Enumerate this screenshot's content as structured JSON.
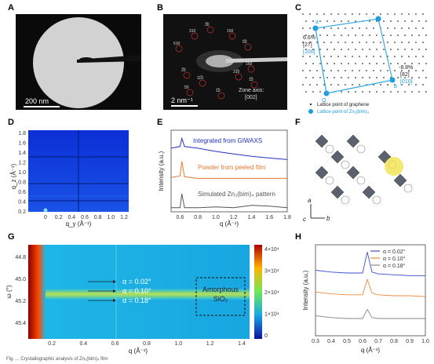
{
  "panels": {
    "A": "A",
    "B": "B",
    "C": "C",
    "D": "D",
    "E": "E",
    "F": "F",
    "G": "G",
    "H": "H"
  },
  "panel_a": {
    "scale_bar": "200 nm"
  },
  "panel_b": {
    "scale_bar": "2 nm⁻¹",
    "zone_axis_line1": "Zone axis:",
    "zone_axis_line2": "[002]",
    "spots": [
      "310",
      "150",
      "510",
      "5̅0",
      "2̅0",
      "11̅0",
      "31̅0",
      "1̅0",
      "3̅0",
      "5́0",
      "1̅0",
      "150"
    ]
  },
  "panel_c": {
    "angle_left": "6.6%",
    "angle_left_idx": "[27]",
    "dir_left": "[100]",
    "angle_right": "-8.8%",
    "angle_right_idx": "[82]",
    "dir_right": "[010]",
    "origin": "O",
    "pt_a": "a",
    "pt_b": "b",
    "legend_graphene": "Lattice point of graphene",
    "legend_zn": "Lattice point of Zn₂(bim)₄"
  },
  "panel_d": {
    "ylabel": "q_z (Å⁻¹)",
    "xlabel": "q_y (Å⁻¹)",
    "yticks": [
      "1.8",
      "1.6",
      "1.4",
      "1.2",
      "1.0",
      "0.8",
      "0.6",
      "0.4",
      "0.2"
    ],
    "xticks": [
      "0",
      "0.2",
      "0.4",
      "0.6",
      "0.8",
      "1.0",
      "1.2"
    ]
  },
  "panel_e": {
    "ylabel": "Intensity (a.u.)",
    "xlabel": "q (Å⁻¹)",
    "series_labels": [
      "Integrated from GIWAXS",
      "Powder from peeled film",
      "Simulated Zn₂(bim)₄ pattern"
    ],
    "xticks": [
      "0.6",
      "0.8",
      "1.0",
      "1.2",
      "1.4",
      "1.6",
      "1.8"
    ]
  },
  "panel_f": {
    "axis_a": "a",
    "axis_b": "b",
    "axis_c": "c"
  },
  "panel_g": {
    "ylabel": "ω (°)",
    "xlabel": "q (Å⁻¹)",
    "yticks": [
      "44.8",
      "45.0",
      "45.2",
      "45.4"
    ],
    "xticks": [
      "0.2",
      "0.4",
      "0.6",
      "0.8",
      "1.0",
      "1.2",
      "1.4"
    ],
    "alpha_labels": [
      "α = 0.02°",
      "α = 0.10°",
      "α = 0.18°"
    ],
    "box_line1": "Amorphous",
    "box_line2": "SiO₂",
    "colorbar_ticks": [
      "4×10⁴",
      "3×10⁴",
      "2×10⁴",
      "1×10⁴",
      "0"
    ]
  },
  "panel_h": {
    "ylabel": "Intensity (a.u.)",
    "xlabel": "q (Å⁻¹)",
    "xticks": [
      "0.3",
      "0.4",
      "0.5",
      "0.6",
      "0.7",
      "0.8",
      "0.9",
      "1.0"
    ]
  },
  "caption": "Fig. ... Crystallographic analysis of Zn₂(bim)₄ film",
  "chart_data": [
    {
      "type": "line",
      "panel": "E",
      "x": [
        0.5,
        0.6,
        0.62,
        0.65,
        0.8,
        1.0,
        1.2,
        1.4,
        1.6,
        1.8
      ],
      "series": [
        {
          "name": "Integrated from GIWAXS",
          "values": [
            0.78,
            0.8,
            0.9,
            0.8,
            0.78,
            0.74,
            0.71,
            0.68,
            0.66,
            0.64
          ]
        },
        {
          "name": "Powder from peeled film",
          "values": [
            0.42,
            0.44,
            0.62,
            0.43,
            0.41,
            0.41,
            0.41,
            0.41,
            0.41,
            0.41
          ]
        },
        {
          "name": "Simulated Zn₂(bim)₄ pattern",
          "values": [
            0.05,
            0.05,
            0.22,
            0.05,
            0.05,
            0.06,
            0.05,
            0.08,
            0.07,
            0.05
          ]
        }
      ],
      "xlabel": "q (Å⁻¹)",
      "ylabel": "Intensity (a.u.)",
      "xlim": [
        0.5,
        1.8
      ]
    },
    {
      "type": "line",
      "panel": "H",
      "x": [
        0.3,
        0.4,
        0.5,
        0.6,
        0.63,
        0.66,
        0.7,
        0.8,
        0.9,
        1.0
      ],
      "series": [
        {
          "name": "α = 0.02°",
          "color": "#3a4fd0",
          "values": [
            0.72,
            0.7,
            0.69,
            0.69,
            0.92,
            0.7,
            0.68,
            0.67,
            0.66,
            0.66
          ]
        },
        {
          "name": "α = 0.10°",
          "color": "#f08a3c",
          "values": [
            0.48,
            0.46,
            0.45,
            0.45,
            0.62,
            0.47,
            0.45,
            0.44,
            0.44,
            0.43
          ]
        },
        {
          "name": "α = 0.18°",
          "color": "#8a8a8a",
          "values": [
            0.22,
            0.2,
            0.19,
            0.19,
            0.29,
            0.2,
            0.19,
            0.19,
            0.19,
            0.19
          ]
        }
      ],
      "xlabel": "q (Å⁻¹)",
      "ylabel": "Intensity (a.u.)",
      "xlim": [
        0.3,
        1.0
      ]
    }
  ]
}
